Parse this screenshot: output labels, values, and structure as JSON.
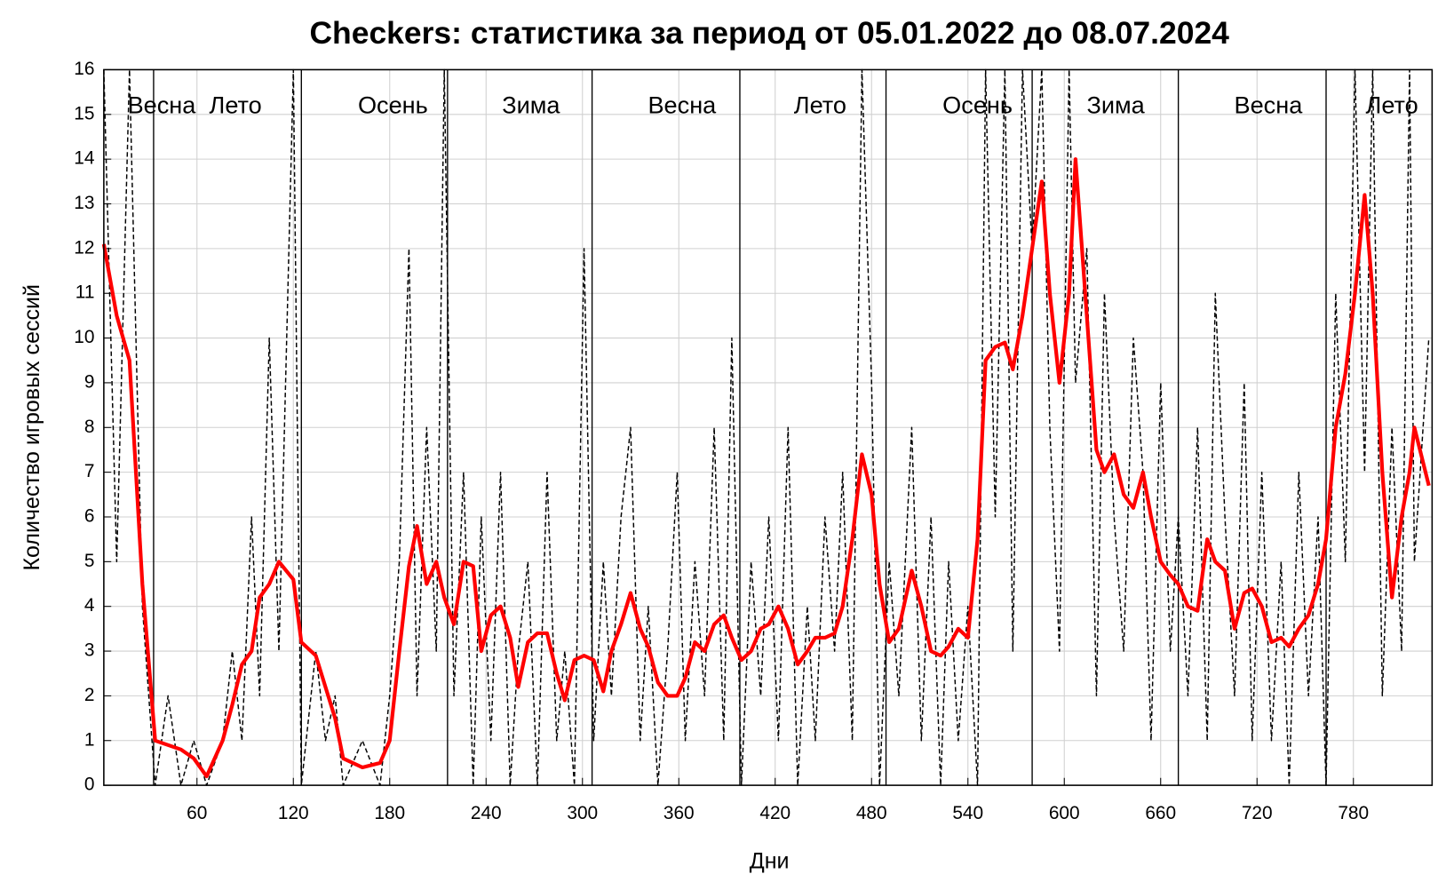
{
  "chart_data": {
    "type": "line",
    "title": "Checkers: статистика за период от 05.01.2022 до 08.07.2024",
    "xlabel": "Дни",
    "ylabel": "Количество игровых сессий",
    "xlim": [
      2,
      829
    ],
    "ylim": [
      0,
      16
    ],
    "xticks": [
      60,
      120,
      180,
      240,
      300,
      360,
      420,
      480,
      540,
      600,
      660,
      720,
      780
    ],
    "yticks": [
      0,
      1,
      2,
      3,
      4,
      5,
      6,
      7,
      8,
      9,
      10,
      11,
      12,
      13,
      14,
      15,
      16
    ],
    "grid": true,
    "season_boundaries": [
      33,
      125,
      216,
      306,
      398,
      489,
      580,
      671,
      763
    ],
    "season_labels": [
      {
        "label": "Весна",
        "x": 38
      },
      {
        "label": "Лето",
        "x": 84
      },
      {
        "label": "Осень",
        "x": 182
      },
      {
        "label": "Зима",
        "x": 268
      },
      {
        "label": "Весна",
        "x": 362
      },
      {
        "label": "Лето",
        "x": 448
      },
      {
        "label": "Осень",
        "x": 546
      },
      {
        "label": "Зима",
        "x": 632
      },
      {
        "label": "Весна",
        "x": 727
      },
      {
        "label": "Лето",
        "x": 804
      }
    ],
    "x": [
      2,
      10,
      18,
      26,
      34,
      42,
      50,
      58,
      66,
      76,
      82,
      88,
      94,
      99,
      105,
      111,
      120,
      125,
      134,
      140,
      146,
      151,
      163,
      174,
      180,
      186,
      192,
      197,
      203,
      209,
      214,
      220,
      226,
      232,
      237,
      243,
      249,
      255,
      260,
      266,
      272,
      278,
      284,
      289,
      295,
      301,
      307,
      313,
      318,
      324,
      330,
      336,
      341,
      347,
      353,
      359,
      364,
      370,
      376,
      382,
      388,
      393,
      399,
      405,
      411,
      416,
      422,
      428,
      434,
      440,
      445,
      451,
      457,
      462,
      468,
      474,
      480,
      485,
      491,
      497,
      505,
      511,
      517,
      523,
      528,
      534,
      540,
      546,
      551,
      557,
      563,
      568,
      574,
      580,
      586,
      591,
      597,
      603,
      607,
      614,
      620,
      625,
      631,
      637,
      643,
      649,
      654,
      660,
      666,
      671,
      677,
      683,
      689,
      694,
      700,
      706,
      712,
      717,
      723,
      729,
      735,
      740,
      746,
      752,
      758,
      763,
      769,
      775,
      781,
      787,
      792,
      798,
      804,
      810,
      815,
      818,
      827
    ],
    "series": [
      {
        "style": "dashed",
        "color": "#000000",
        "values": [
          16,
          5,
          16,
          4,
          0,
          2,
          0,
          1,
          0,
          1,
          3,
          1,
          6,
          2,
          10,
          3,
          16,
          0,
          3,
          1,
          2,
          0,
          1,
          0,
          2,
          5,
          12,
          2,
          8,
          3,
          16,
          2,
          7,
          0,
          6,
          1,
          7,
          0,
          3,
          5,
          0,
          7,
          1,
          3,
          0,
          12,
          1,
          5,
          2,
          6,
          8,
          1,
          4,
          0,
          3,
          7,
          1,
          5,
          2,
          8,
          1,
          10,
          0,
          5,
          2,
          6,
          1,
          8,
          0,
          4,
          1,
          6,
          3,
          7,
          1,
          16,
          9,
          0,
          5,
          2,
          8,
          1,
          6,
          0,
          5,
          1,
          4,
          0,
          16,
          6,
          16,
          3,
          16,
          12,
          16,
          8,
          3,
          16,
          9,
          12,
          2,
          11,
          6,
          3,
          10,
          7,
          1,
          9,
          3,
          6,
          2,
          8,
          1,
          11,
          6,
          2,
          9,
          1,
          7,
          1,
          5,
          0,
          7,
          2,
          6,
          0,
          11,
          5,
          16,
          7,
          16,
          2,
          8,
          3,
          16,
          5,
          10
        ]
      },
      {
        "style": "solid",
        "color": "#ff0000",
        "values": [
          12.1,
          10.5,
          9.5,
          4.5,
          1.0,
          0.9,
          0.8,
          0.6,
          0.2,
          1.0,
          1.8,
          2.7,
          3.0,
          4.2,
          4.5,
          5.0,
          4.6,
          3.2,
          2.9,
          2.2,
          1.5,
          0.6,
          0.4,
          0.5,
          1.0,
          3.0,
          4.9,
          5.8,
          4.5,
          5.0,
          4.2,
          3.6,
          5.0,
          4.9,
          3.0,
          3.8,
          4.0,
          3.3,
          2.2,
          3.2,
          3.4,
          3.4,
          2.5,
          1.9,
          2.8,
          2.9,
          2.8,
          2.1,
          3.0,
          3.6,
          4.3,
          3.5,
          3.1,
          2.3,
          2.0,
          2.0,
          2.4,
          3.2,
          3.0,
          3.6,
          3.8,
          3.3,
          2.8,
          3.0,
          3.5,
          3.6,
          4.0,
          3.5,
          2.7,
          3.0,
          3.3,
          3.3,
          3.4,
          4.0,
          5.5,
          7.4,
          6.5,
          4.5,
          3.2,
          3.5,
          4.8,
          4.0,
          3.0,
          2.9,
          3.1,
          3.5,
          3.3,
          5.5,
          9.5,
          9.8,
          9.9,
          9.3,
          10.5,
          12.0,
          13.5,
          11.0,
          9.0,
          11.0,
          14.0,
          10.5,
          7.5,
          7.0,
          7.4,
          6.5,
          6.2,
          7.0,
          6.0,
          5.0,
          4.7,
          4.5,
          4.0,
          3.9,
          5.5,
          5.0,
          4.8,
          3.5,
          4.3,
          4.4,
          4.0,
          3.2,
          3.3,
          3.1,
          3.5,
          3.8,
          4.5,
          5.5,
          8.0,
          9.2,
          11.0,
          13.2,
          11.0,
          7.0,
          4.2,
          6.0,
          7.0,
          8.0,
          6.7
        ]
      }
    ]
  }
}
